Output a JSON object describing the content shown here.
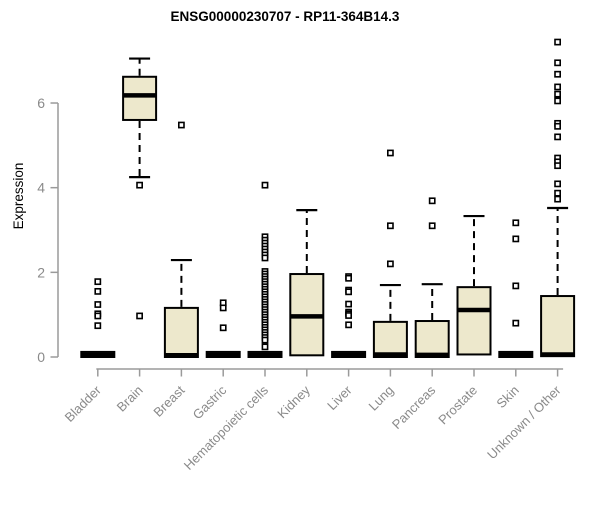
{
  "chart_data": {
    "type": "boxplot",
    "title": "ENSG00000230707 - RP11-364B14.3",
    "ylabel": "Expression",
    "xlabel": "",
    "ylim": [
      0,
      7.5
    ],
    "yticks": [
      0,
      2,
      4,
      6
    ],
    "grid": false,
    "legend": "none",
    "categories": [
      "Bladder",
      "Brain",
      "Breast",
      "Gastric",
      "Hematopoietic cells",
      "Kidney",
      "Liver",
      "Lung",
      "Pancreas",
      "Prostate",
      "Skin",
      "Unknown / Other"
    ],
    "series": [
      {
        "name": "Bladder",
        "low": 0,
        "q1": 0,
        "median": 0.05,
        "q3": 0.12,
        "high": 0.12,
        "outliers": [
          1.78,
          1.55,
          1.24,
          1.02,
          0.97,
          0.74
        ]
      },
      {
        "name": "Brain",
        "low": 4.25,
        "q1": 5.6,
        "median": 6.18,
        "q3": 6.62,
        "high": 7.05,
        "outliers": [
          4.06,
          0.97
        ]
      },
      {
        "name": "Breast",
        "low": 0,
        "q1": 0,
        "median": 0.04,
        "q3": 1.16,
        "high": 2.29,
        "outliers": [
          5.48
        ]
      },
      {
        "name": "Gastric",
        "low": 0,
        "q1": 0,
        "median": 0.05,
        "q3": 0.12,
        "high": 0.12,
        "outliers": [
          1.28,
          1.16,
          0.69
        ]
      },
      {
        "name": "Hematopoietic cells",
        "low": 0,
        "q1": 0,
        "median": 0.05,
        "q3": 0.12,
        "high": 0.12,
        "outliers": [
          4.06,
          2.84,
          2.76,
          2.69,
          2.62,
          2.55,
          2.48,
          2.41,
          2.34,
          2.02,
          1.96,
          1.9,
          1.84,
          1.78,
          1.72,
          1.66,
          1.6,
          1.54,
          1.48,
          1.42,
          1.36,
          1.3,
          1.24,
          1.18,
          1.12,
          1.06,
          1.0,
          0.94,
          0.88,
          0.82,
          0.76,
          0.7,
          0.64,
          0.58,
          0.52,
          0.46,
          0.4,
          0.24
        ]
      },
      {
        "name": "Kidney",
        "low": 0.04,
        "q1": 0.04,
        "median": 0.96,
        "q3": 1.96,
        "high": 3.47,
        "outliers": []
      },
      {
        "name": "Liver",
        "low": 0,
        "q1": 0,
        "median": 0.05,
        "q3": 0.12,
        "high": 0.12,
        "outliers": [
          1.9,
          1.86,
          1.58,
          1.54,
          1.25,
          1.06,
          1.02,
          0.98,
          0.76
        ]
      },
      {
        "name": "Lung",
        "low": 0,
        "q1": 0,
        "median": 0.06,
        "q3": 0.83,
        "high": 1.7,
        "outliers": [
          4.82,
          3.1,
          2.2
        ]
      },
      {
        "name": "Pancreas",
        "low": 0,
        "q1": 0,
        "median": 0.05,
        "q3": 0.85,
        "high": 1.72,
        "outliers": [
          3.69,
          3.1
        ]
      },
      {
        "name": "Prostate",
        "low": 0.06,
        "q1": 0.06,
        "median": 1.11,
        "q3": 1.65,
        "high": 3.33,
        "outliers": []
      },
      {
        "name": "Skin",
        "low": 0,
        "q1": 0,
        "median": 0.05,
        "q3": 0.12,
        "high": 0.12,
        "outliers": [
          3.17,
          2.79,
          1.68,
          0.8
        ]
      },
      {
        "name": "Unknown / Other",
        "low": 0.02,
        "q1": 0.02,
        "median": 0.06,
        "q3": 1.44,
        "high": 3.52,
        "outliers": [
          7.44,
          6.95,
          6.68,
          6.38,
          6.21,
          6.05,
          5.52,
          5.45,
          5.2,
          4.7,
          4.61,
          4.52,
          4.09,
          3.87,
          3.73
        ]
      }
    ],
    "colors": {
      "box_fill": "#EDE8CC",
      "box_border": "#000000",
      "median": "#000000",
      "whisker": "#000000",
      "outlier_fill": "#ffffff",
      "axis_line": "#9a9a9a",
      "axis_text": "#8a8a8a",
      "title": "#000000",
      "background": "#ffffff"
    }
  }
}
